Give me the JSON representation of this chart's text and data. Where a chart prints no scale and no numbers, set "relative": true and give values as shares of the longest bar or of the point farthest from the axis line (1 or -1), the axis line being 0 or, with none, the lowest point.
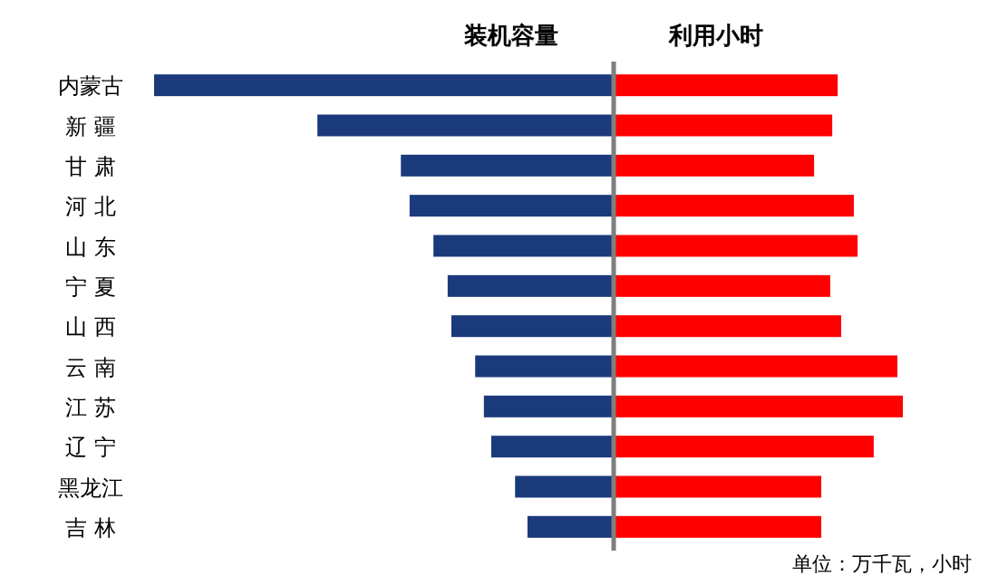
{
  "chart_data": [
    {
      "type": "bar",
      "orientation": "horizontal",
      "relative": true,
      "categories": [
        "内蒙古",
        "新 疆",
        "甘 肃",
        "河 北",
        "山 东",
        "宁 夏",
        "山 西",
        "云 南",
        "江 苏",
        "辽 宁",
        "黑龙江",
        "吉 林"
      ],
      "series": [
        {
          "name": "装机容量",
          "color": "#1a3a7c",
          "values": [
            1,
            0.644,
            0.462,
            0.443,
            0.391,
            0.36,
            0.352,
            0.3,
            0.281,
            0.265,
            0.213,
            0.186
          ]
        }
      ]
    },
    {
      "type": "bar",
      "orientation": "horizontal",
      "relative": true,
      "categories": [
        null,
        null,
        null,
        null,
        null,
        null,
        null,
        null,
        null,
        null,
        null,
        null
      ],
      "series": [
        {
          "name": "利用小时",
          "color": "#ff0000",
          "values": [
            0.774,
            0.755,
            0.692,
            0.83,
            0.843,
            0.748,
            0.786,
            0.981,
            1,
            0.899,
            0.717,
            0.717
          ]
        }
      ],
      "annotations": [
        "单位：万千瓦，小时"
      ]
    }
  ]
}
